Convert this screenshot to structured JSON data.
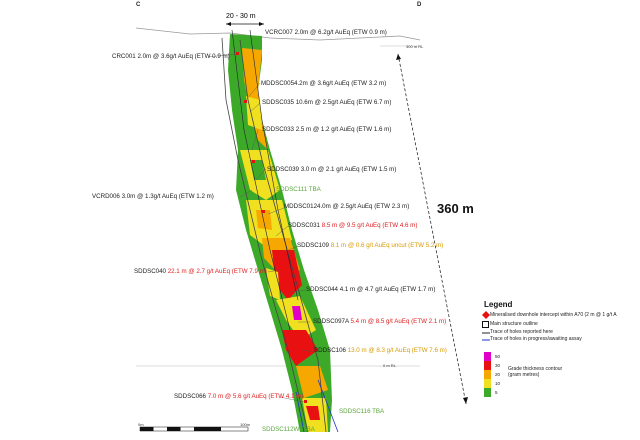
{
  "section": {
    "left_letter": "C",
    "right_letter": "D"
  },
  "width_label": "20 - 30 m",
  "depth_label": "360 m",
  "rl_labels": [
    "300 m RL",
    "0 m RL"
  ],
  "intercepts": [
    {
      "id": "vcrc007",
      "prefix": "VCRC007 2.0m @ 6.2g/t AuEq (ETW 0.9 m)",
      "value": "",
      "color": "#222222"
    },
    {
      "id": "crc001",
      "prefix": "CRC001 2.0m @ 3.6g/t AuEq (ETW 0.9 m)",
      "value": "",
      "color": "#222222"
    },
    {
      "id": "mddsc005",
      "prefix": "MDDSC0054.2m @ 3.6g/t AuEq (ETW 3.2 m)",
      "value": "",
      "color": "#222222"
    },
    {
      "id": "sddsc035",
      "prefix": "SDDSC035 10.6m @ 2.5g/t AuEq (ETW 6.7 m)",
      "value": "",
      "color": "#222222"
    },
    {
      "id": "sddsc033",
      "prefix": "SDDSC033 2.5 m @ 1.2 g/t AuEq (ETW 1.6 m)",
      "value": "",
      "color": "#222222"
    },
    {
      "id": "sddsc039",
      "prefix": "SDDSC039 3.0 m @ 2.1 g/t AuEq (ETW 1.5 m)",
      "value": "",
      "color": "#222222"
    },
    {
      "id": "sddsc111",
      "prefix": "",
      "value": "SDDSC111 TBA",
      "color": "#5aa53a"
    },
    {
      "id": "vcrd006",
      "prefix": "VCRD006 3.0m @ 1.3g/t AuEq (ETW 1.2 m)",
      "value": "",
      "color": "#222222"
    },
    {
      "id": "mddsc012",
      "prefix": "MDDSC0124.0m @ 2.5g/t AuEq (ETW 2.3 m)",
      "value": "",
      "color": "#222222"
    },
    {
      "id": "sddsc031",
      "prefix": "SDDSC031 ",
      "value": "8.5 m @ 9.5 g/t AuEq (ETW 4.6 m)",
      "color": "#e02020"
    },
    {
      "id": "sddsc109",
      "prefix": "SDDSC109 ",
      "value": "8.1 m @ 0.6 g/t AuEq uncut (ETW 5.2 m)",
      "color": "#d99a00"
    },
    {
      "id": "sddsc040",
      "prefix": "SDDSC040 ",
      "value": "22.1 m @ 2.7 g/t AuEq (ETW 7.9 m)",
      "color": "#e02020"
    },
    {
      "id": "sddsc044",
      "prefix": "SDDSC044 4.1 m @ 4.7 g/t AuEq (ETW 1.7 m)",
      "value": "",
      "color": "#222222"
    },
    {
      "id": "sddsc097a",
      "prefix": "SDDSC097A ",
      "value": "5.4 m @ 8.5 g/t AuEq (ETW 2.1 m)",
      "color": "#e02020"
    },
    {
      "id": "sddsc106",
      "prefix": "SDDSC106 ",
      "value": "13.0 m @ 8.3 g/t AuEq (ETW 7.6 m)",
      "color": "#d99a00"
    },
    {
      "id": "sddsc066",
      "prefix": "SDDSC066 ",
      "value": "7.0 m @ 5.6 g/t AuEq (ETW 4.1 m)",
      "color": "#e02020"
    },
    {
      "id": "sddsc116",
      "prefix": "",
      "value": "SDDSC116 TBA",
      "color": "#5aa53a"
    },
    {
      "id": "sddsc112w1",
      "prefix": "",
      "value": "SDDSC112W1TBA",
      "color": "#5aa53a"
    }
  ],
  "legend": {
    "title": "Legend",
    "items": [
      "Mineralised downhole intercept within A70 (2 m @ 1 g/t A",
      "Main structure outline",
      "Trace of holes reported here",
      "Trace of holes in progress/awaiting assay"
    ],
    "contour_title": "Grade thickness contour",
    "contour_units": "(gram metres)",
    "contour_values": [
      "50",
      "30",
      "20",
      "10",
      "5"
    ],
    "contour_colors": [
      "#e000c8",
      "#e81010",
      "#f7a800",
      "#f0e020",
      "#3caa28"
    ]
  },
  "scale": {
    "start": "0m",
    "end": "100m"
  }
}
